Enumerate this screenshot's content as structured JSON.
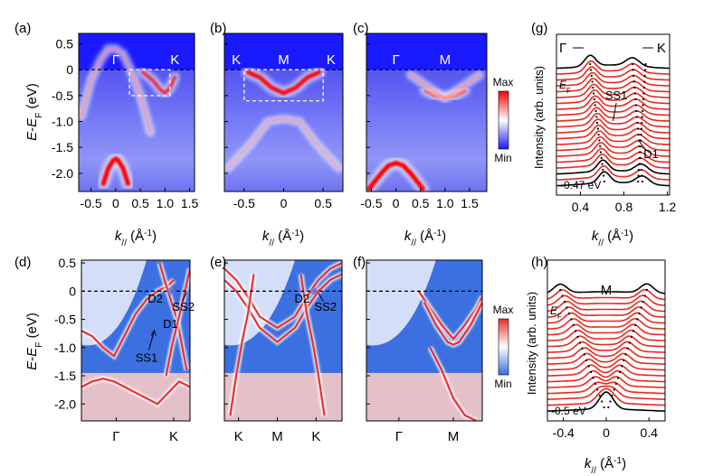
{
  "figure": {
    "panel_labels": [
      "(a)",
      "(b)",
      "(c)",
      "(d)",
      "(e)",
      "(f)",
      "(g)",
      "(h)"
    ],
    "colors": {
      "arpes_white": "#ffffff",
      "arpes_blue": "#1a1aff",
      "arpes_red": "#ff0000",
      "calc_blue": "#3c6fe0",
      "calc_red": "#e8302e",
      "edc_red": "#e8281e",
      "edc_black": "#000000"
    }
  },
  "chart_data": [
    {
      "panel": "(a)",
      "type": "heatmap",
      "kind": "arpes",
      "ylabel": "E-EF (eV)",
      "xlabel": "k// (Å-1)",
      "xlim": [
        -0.75,
        1.6
      ],
      "ylim": [
        -2.35,
        0.7
      ],
      "xticks": [
        "-0.5",
        "0",
        "0.5",
        "1.0",
        "1.5"
      ],
      "xtick_values": [
        -0.5,
        0,
        0.5,
        1.0,
        1.5
      ],
      "yticks": [
        "0.5",
        "0",
        "-0.5",
        "-1.0",
        "-1.5",
        "-2.0"
      ],
      "ytick_values": [
        0.5,
        0,
        -0.5,
        -1.0,
        -1.5,
        -2.0
      ],
      "point_labels": [
        {
          "text": "Γ",
          "k": 0
        },
        {
          "text": "K",
          "k": 1.2
        }
      ],
      "fermi_level": 0,
      "box": {
        "k": [
          0.28,
          1.1
        ],
        "E": [
          -0.5,
          0
        ]
      },
      "bands": [
        {
          "k": [
            -0.7,
            -0.5,
            -0.3,
            -0.15,
            0,
            0.15,
            0.3,
            0.5,
            0.7
          ],
          "E": [
            -0.9,
            -0.2,
            0.2,
            0.4,
            0.4,
            0.3,
            0.0,
            -0.5,
            -1.2
          ],
          "weight": 0.4
        },
        {
          "k": [
            -0.25,
            -0.15,
            -0.05,
            0,
            0.05,
            0.15,
            0.25
          ],
          "E": [
            -2.2,
            -1.9,
            -1.75,
            -1.72,
            -1.75,
            -1.9,
            -2.2
          ],
          "weight": 1.0
        },
        {
          "k": [
            0.55,
            0.75,
            0.9,
            1.0,
            1.1,
            1.2
          ],
          "E": [
            -0.05,
            -0.2,
            -0.38,
            -0.45,
            -0.35,
            -0.15
          ],
          "weight": 0.6
        }
      ]
    },
    {
      "panel": "(b)",
      "type": "heatmap",
      "kind": "arpes",
      "xlim": [
        -0.75,
        0.75
      ],
      "ylim": [
        -2.35,
        0.7
      ],
      "xticks": [
        "-0.5",
        "0",
        "0.5"
      ],
      "xtick_values": [
        -0.5,
        0,
        0.5
      ],
      "xlabel": "k// (Å-1)",
      "point_labels": [
        {
          "text": "K",
          "k": -0.6
        },
        {
          "text": "M",
          "k": 0
        },
        {
          "text": "K",
          "k": 0.6
        }
      ],
      "fermi_level": 0,
      "box": {
        "k": [
          -0.5,
          0.5
        ],
        "E": [
          -0.6,
          0
        ]
      },
      "bands": [
        {
          "k": [
            -0.45,
            -0.3,
            -0.15,
            0,
            0.15,
            0.3,
            0.45
          ],
          "E": [
            -0.05,
            -0.15,
            -0.35,
            -0.45,
            -0.35,
            -0.15,
            -0.05
          ],
          "weight": 0.9
        },
        {
          "k": [
            -0.7,
            -0.4,
            -0.2,
            0,
            0.2,
            0.4,
            0.7
          ],
          "E": [
            -1.9,
            -1.4,
            -1.0,
            -0.95,
            -1.0,
            -1.4,
            -1.9
          ],
          "weight": 0.3
        }
      ]
    },
    {
      "panel": "(c)",
      "type": "heatmap",
      "kind": "arpes",
      "xlim": [
        -0.6,
        1.85
      ],
      "ylim": [
        -2.35,
        0.7
      ],
      "xticks": [
        "-0.5",
        "0",
        "0.5",
        "1.0",
        "1.5"
      ],
      "xtick_values": [
        -0.5,
        0,
        0.5,
        1.0,
        1.5
      ],
      "xlabel": "k// (Å-1)",
      "point_labels": [
        {
          "text": "Γ",
          "k": 0
        },
        {
          "text": "M",
          "k": 1.0
        }
      ],
      "fermi_level": 0,
      "colorbar": {
        "max_label": "Max",
        "min_label": "Min"
      },
      "bands": [
        {
          "k": [
            -0.55,
            -0.3,
            -0.15,
            0,
            0.15,
            0.3,
            0.55
          ],
          "E": [
            -2.3,
            -2.0,
            -1.85,
            -1.8,
            -1.85,
            -2.0,
            -2.3
          ],
          "weight": 1.0
        },
        {
          "k": [
            0.6,
            0.8,
            1.0,
            1.2,
            1.4
          ],
          "E": [
            -0.4,
            -0.5,
            -0.55,
            -0.5,
            -0.4
          ],
          "weight": 0.7
        },
        {
          "k": [
            0.3,
            0.6,
            1.0,
            1.4,
            1.7
          ],
          "E": [
            -0.1,
            -0.3,
            -0.55,
            -0.3,
            -0.1
          ],
          "weight": 0.4
        }
      ]
    },
    {
      "panel": "(d)",
      "type": "heatmap",
      "kind": "calculation",
      "ylabel": "E-EF (eV)",
      "xlim": [
        0,
        1
      ],
      "ylim": [
        -2.3,
        0.55
      ],
      "yticks": [
        "0.5",
        "0",
        "-0.5",
        "-1.0",
        "-1.5",
        "-2.0"
      ],
      "ytick_values": [
        0.5,
        0,
        -0.5,
        -1.0,
        -1.5,
        -2.0
      ],
      "point_labels": [
        {
          "text": "Γ",
          "k": 0.32
        },
        {
          "text": "K",
          "k": 0.85
        }
      ],
      "fermi_level": 0,
      "annotations": [
        "D2",
        "SS2",
        "D1",
        "SS1"
      ],
      "colorbar": {
        "max_label": "Max",
        "min_label": "Min"
      },
      "bands": [
        {
          "k": [
            0.0,
            0.1,
            0.2,
            0.3,
            0.5,
            0.6,
            0.7,
            0.8,
            0.85
          ],
          "E": [
            -0.7,
            -0.8,
            -1.0,
            -1.15,
            -0.4,
            -0.15,
            0.0,
            0.1,
            0.2
          ]
        },
        {
          "k": [
            0.72,
            0.78,
            0.83,
            0.88,
            0.92,
            0.97
          ],
          "E": [
            0.5,
            0.1,
            -0.2,
            -0.5,
            -0.9,
            -1.4
          ]
        },
        {
          "k": [
            0.78,
            0.83,
            0.88,
            0.93,
            1.0
          ],
          "E": [
            -1.5,
            -1.0,
            -0.6,
            -0.2,
            0.4
          ]
        },
        {
          "k": [
            0.0,
            0.1,
            0.2,
            0.3,
            0.4,
            0.5,
            0.6,
            0.7,
            0.8,
            0.9,
            1.0
          ],
          "E": [
            -1.7,
            -1.6,
            -1.55,
            -1.6,
            -1.7,
            -1.8,
            -1.9,
            -2.0,
            -1.8,
            -1.6,
            -1.7
          ]
        }
      ]
    },
    {
      "panel": "(e)",
      "type": "heatmap",
      "kind": "calculation",
      "xlim": [
        0,
        1
      ],
      "ylim": [
        -2.3,
        0.55
      ],
      "point_labels": [
        {
          "text": "K",
          "k": 0.12
        },
        {
          "text": "M",
          "k": 0.45
        },
        {
          "text": "K",
          "k": 0.78
        }
      ],
      "fermi_level": 0,
      "annotations": [
        "D2",
        "SS2"
      ],
      "bands": [
        {
          "k": [
            0.0,
            0.1,
            0.2,
            0.3,
            0.45,
            0.6,
            0.7,
            0.8,
            0.9,
            1.0
          ],
          "E": [
            0.4,
            0.2,
            -0.1,
            -0.45,
            -0.65,
            -0.45,
            -0.1,
            0.2,
            0.4,
            0.5
          ]
        },
        {
          "k": [
            0.0,
            0.1,
            0.2,
            0.3,
            0.45,
            0.6,
            0.7,
            0.8,
            0.9,
            1.0
          ],
          "E": [
            0.2,
            0.0,
            -0.3,
            -0.65,
            -0.9,
            -0.65,
            -0.3,
            0.0,
            0.2,
            0.3
          ]
        },
        {
          "k": [
            0.05,
            0.1,
            0.15,
            0.2,
            0.25
          ],
          "E": [
            -2.2,
            -1.5,
            -0.9,
            -0.4,
            0.3
          ]
        },
        {
          "k": [
            0.65,
            0.7,
            0.75,
            0.8,
            0.85
          ],
          "E": [
            0.3,
            -0.4,
            -0.9,
            -1.5,
            -2.2
          ]
        }
      ]
    },
    {
      "panel": "(f)",
      "type": "heatmap",
      "kind": "calculation",
      "xlim": [
        0,
        1
      ],
      "ylim": [
        -2.3,
        0.55
      ],
      "point_labels": [
        {
          "text": "Γ",
          "k": 0.28
        },
        {
          "text": "M",
          "k": 0.75
        }
      ],
      "fermi_level": 0,
      "colorbar": {
        "max_label": "Max",
        "min_label": "Min"
      },
      "bands": [
        {
          "k": [
            0.45,
            0.55,
            0.65,
            0.75,
            0.85,
            0.95,
            1.0
          ],
          "E": [
            0.0,
            -0.3,
            -0.6,
            -0.85,
            -0.6,
            -0.3,
            -0.1
          ]
        },
        {
          "k": [
            0.5,
            0.6,
            0.7,
            0.75,
            0.8,
            0.9,
            1.0
          ],
          "E": [
            -0.2,
            -0.6,
            -0.9,
            -0.95,
            -0.9,
            -0.6,
            -0.2
          ]
        },
        {
          "k": [
            0.55,
            0.65,
            0.75,
            0.85,
            0.95
          ],
          "E": [
            -1.0,
            -1.4,
            -1.9,
            -2.2,
            -2.3
          ]
        }
      ]
    },
    {
      "panel": "(g)",
      "type": "line",
      "kind": "EDC stack",
      "ylabel": "Intensity (arb. units)",
      "xlabel": "k// (Å-1)",
      "xlim": [
        0.18,
        1.22
      ],
      "xticks": [
        "0.4",
        "0.8",
        "1.2"
      ],
      "xtick_values": [
        0.4,
        0.8,
        1.2
      ],
      "direction_labels": {
        "left": "Γ",
        "right": "K"
      },
      "ef_label": "EF",
      "bottom_label": "-0.47 eV",
      "annotations": [
        "SS1",
        "D1"
      ],
      "n_curves": 21,
      "peak_tracks": [
        {
          "k_top": 0.49,
          "k_bottom": 0.62
        },
        {
          "k_top": 0.88,
          "k_bottom": 0.97
        },
        {
          "k_top": 1.0,
          "k_bottom": 0.93
        }
      ]
    },
    {
      "panel": "(h)",
      "type": "line",
      "kind": "EDC stack",
      "ylabel": "Intensity (arb. units)",
      "xlabel": "k// (Å-1)",
      "xlim": [
        -0.55,
        0.55
      ],
      "xticks": [
        "-0.4",
        "0",
        "0.4"
      ],
      "xtick_values": [
        -0.4,
        0,
        0.4
      ],
      "point_label": "M",
      "ef_label": "EF",
      "bottom_label": "-0.5 eV",
      "n_curves": 21,
      "peak_tracks": [
        {
          "k_top": -0.43,
          "k_bottom": -0.02
        },
        {
          "k_top": 0.38,
          "k_bottom": 0.02
        }
      ]
    }
  ]
}
